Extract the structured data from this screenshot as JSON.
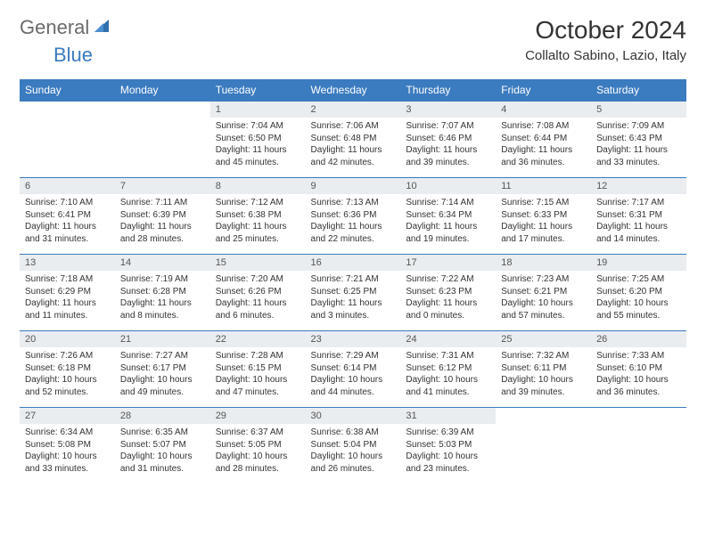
{
  "logo": {
    "word1": "General",
    "word2": "Blue"
  },
  "title": "October 2024",
  "location": "Collalto Sabino, Lazio, Italy",
  "colors": {
    "header_bg": "#3b7bbf",
    "header_fg": "#ffffff",
    "daynum_bg": "#e9edf0",
    "border": "#3b7bbf",
    "logo_gray": "#6b6b6b",
    "logo_blue": "#3b7bbf"
  },
  "typography": {
    "title_fontsize": 28,
    "location_fontsize": 15,
    "header_fontsize": 12,
    "daynum_fontsize": 11,
    "body_fontsize": 10
  },
  "weekdays": [
    "Sunday",
    "Monday",
    "Tuesday",
    "Wednesday",
    "Thursday",
    "Friday",
    "Saturday"
  ],
  "weeks": [
    [
      null,
      null,
      {
        "n": "1",
        "sr": "7:04 AM",
        "ss": "6:50 PM",
        "dl": "11 hours and 45 minutes."
      },
      {
        "n": "2",
        "sr": "7:06 AM",
        "ss": "6:48 PM",
        "dl": "11 hours and 42 minutes."
      },
      {
        "n": "3",
        "sr": "7:07 AM",
        "ss": "6:46 PM",
        "dl": "11 hours and 39 minutes."
      },
      {
        "n": "4",
        "sr": "7:08 AM",
        "ss": "6:44 PM",
        "dl": "11 hours and 36 minutes."
      },
      {
        "n": "5",
        "sr": "7:09 AM",
        "ss": "6:43 PM",
        "dl": "11 hours and 33 minutes."
      }
    ],
    [
      {
        "n": "6",
        "sr": "7:10 AM",
        "ss": "6:41 PM",
        "dl": "11 hours and 31 minutes."
      },
      {
        "n": "7",
        "sr": "7:11 AM",
        "ss": "6:39 PM",
        "dl": "11 hours and 28 minutes."
      },
      {
        "n": "8",
        "sr": "7:12 AM",
        "ss": "6:38 PM",
        "dl": "11 hours and 25 minutes."
      },
      {
        "n": "9",
        "sr": "7:13 AM",
        "ss": "6:36 PM",
        "dl": "11 hours and 22 minutes."
      },
      {
        "n": "10",
        "sr": "7:14 AM",
        "ss": "6:34 PM",
        "dl": "11 hours and 19 minutes."
      },
      {
        "n": "11",
        "sr": "7:15 AM",
        "ss": "6:33 PM",
        "dl": "11 hours and 17 minutes."
      },
      {
        "n": "12",
        "sr": "7:17 AM",
        "ss": "6:31 PM",
        "dl": "11 hours and 14 minutes."
      }
    ],
    [
      {
        "n": "13",
        "sr": "7:18 AM",
        "ss": "6:29 PM",
        "dl": "11 hours and 11 minutes."
      },
      {
        "n": "14",
        "sr": "7:19 AM",
        "ss": "6:28 PM",
        "dl": "11 hours and 8 minutes."
      },
      {
        "n": "15",
        "sr": "7:20 AM",
        "ss": "6:26 PM",
        "dl": "11 hours and 6 minutes."
      },
      {
        "n": "16",
        "sr": "7:21 AM",
        "ss": "6:25 PM",
        "dl": "11 hours and 3 minutes."
      },
      {
        "n": "17",
        "sr": "7:22 AM",
        "ss": "6:23 PM",
        "dl": "11 hours and 0 minutes."
      },
      {
        "n": "18",
        "sr": "7:23 AM",
        "ss": "6:21 PM",
        "dl": "10 hours and 57 minutes."
      },
      {
        "n": "19",
        "sr": "7:25 AM",
        "ss": "6:20 PM",
        "dl": "10 hours and 55 minutes."
      }
    ],
    [
      {
        "n": "20",
        "sr": "7:26 AM",
        "ss": "6:18 PM",
        "dl": "10 hours and 52 minutes."
      },
      {
        "n": "21",
        "sr": "7:27 AM",
        "ss": "6:17 PM",
        "dl": "10 hours and 49 minutes."
      },
      {
        "n": "22",
        "sr": "7:28 AM",
        "ss": "6:15 PM",
        "dl": "10 hours and 47 minutes."
      },
      {
        "n": "23",
        "sr": "7:29 AM",
        "ss": "6:14 PM",
        "dl": "10 hours and 44 minutes."
      },
      {
        "n": "24",
        "sr": "7:31 AM",
        "ss": "6:12 PM",
        "dl": "10 hours and 41 minutes."
      },
      {
        "n": "25",
        "sr": "7:32 AM",
        "ss": "6:11 PM",
        "dl": "10 hours and 39 minutes."
      },
      {
        "n": "26",
        "sr": "7:33 AM",
        "ss": "6:10 PM",
        "dl": "10 hours and 36 minutes."
      }
    ],
    [
      {
        "n": "27",
        "sr": "6:34 AM",
        "ss": "5:08 PM",
        "dl": "10 hours and 33 minutes."
      },
      {
        "n": "28",
        "sr": "6:35 AM",
        "ss": "5:07 PM",
        "dl": "10 hours and 31 minutes."
      },
      {
        "n": "29",
        "sr": "6:37 AM",
        "ss": "5:05 PM",
        "dl": "10 hours and 28 minutes."
      },
      {
        "n": "30",
        "sr": "6:38 AM",
        "ss": "5:04 PM",
        "dl": "10 hours and 26 minutes."
      },
      {
        "n": "31",
        "sr": "6:39 AM",
        "ss": "5:03 PM",
        "dl": "10 hours and 23 minutes."
      },
      null,
      null
    ]
  ],
  "labels": {
    "sunrise": "Sunrise:",
    "sunset": "Sunset:",
    "daylight": "Daylight:"
  }
}
